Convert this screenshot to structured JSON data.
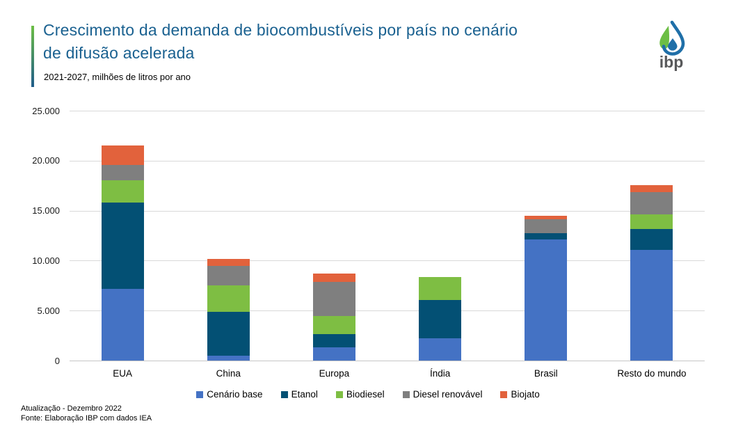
{
  "header": {
    "title_line1": "Crescimento da demanda de biocombustíveis por país no cenário",
    "title_line2": "de difusão acelerada",
    "subtitle": "2021-2027, milhões de litros por ano",
    "logo_text": "ibp"
  },
  "chart_data": {
    "type": "bar",
    "stacked": true,
    "title": "Crescimento da demanda de biocombustíveis por país no cenário de difusão acelerada",
    "subtitle": "2021-2027, milhões de litros por ano",
    "categories": [
      "EUA",
      "China",
      "Europa",
      "Índia",
      "Brasil",
      "Resto do mundo"
    ],
    "series": [
      {
        "name": "Cenário base",
        "color": "#4472C4",
        "values": [
          7200,
          500,
          1300,
          2250,
          12150,
          11050
        ]
      },
      {
        "name": "Etanol",
        "color": "#035074",
        "values": [
          8600,
          4400,
          1350,
          3800,
          600,
          2100
        ]
      },
      {
        "name": "Biodiesel",
        "color": "#7EBE43",
        "values": [
          2250,
          2650,
          1800,
          2300,
          0,
          1450
        ]
      },
      {
        "name": "Diesel renovável",
        "color": "#7F7F7F",
        "values": [
          1500,
          1900,
          3400,
          0,
          1400,
          2250
        ]
      },
      {
        "name": "Biojato",
        "color": "#E2623C",
        "values": [
          2000,
          700,
          850,
          0,
          350,
          700
        ]
      }
    ],
    "ylim": [
      0,
      25000
    ],
    "yticks": [
      {
        "value": 0,
        "label": "0"
      },
      {
        "value": 5000,
        "label": "5.000"
      },
      {
        "value": 10000,
        "label": "10.000"
      },
      {
        "value": 15000,
        "label": "15.000"
      },
      {
        "value": 20000,
        "label": "20.000"
      },
      {
        "value": 25000,
        "label": "25.000"
      }
    ],
    "grid": true,
    "legend_position": "bottom"
  },
  "footer": {
    "line1": "Atualização - Dezembro 2022",
    "line2": "Fonte: Elaboração IBP com dados IEA"
  },
  "colors": {
    "title_color": "#1A6190",
    "accent_top": "#6CBE45",
    "accent_bottom": "#1F5C8A",
    "gridline": "#D9D9D9",
    "axis_line": "#C6C6C6",
    "logo_blue": "#1F6FA8",
    "logo_green": "#6CBE45",
    "logo_gray": "#58595B"
  }
}
